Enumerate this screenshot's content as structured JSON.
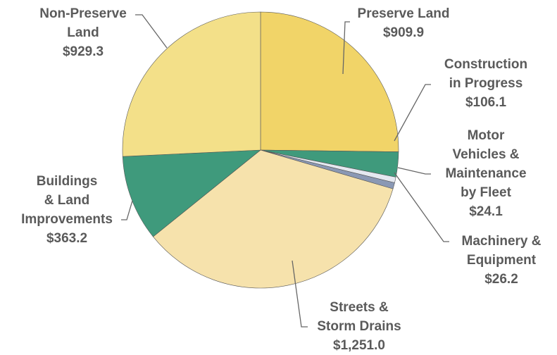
{
  "chart_data": {
    "type": "pie",
    "categories": [
      [
        "Preserve Land"
      ],
      [
        "Construction",
        "in Progress"
      ],
      [
        "Motor",
        "Vehicles &",
        "Maintenance",
        "by Fleet"
      ],
      [
        "Machinery &",
        "Equipment"
      ],
      [
        "Streets &",
        "Storm Drains"
      ],
      [
        "Buildings",
        "& Land",
        "Improvements"
      ],
      [
        "Non-Preserve",
        "Land"
      ]
    ],
    "values": [
      909.9,
      106.1,
      24.1,
      26.2,
      1251.0,
      363.2,
      929.3
    ],
    "value_labels": [
      "$909.9",
      "$106.1",
      "$24.1",
      "$26.2",
      "$1,251.0",
      "$363.2",
      "$929.3"
    ],
    "colors": [
      "#f1d468",
      "#3f9a7c",
      "#e4e8f0",
      "#8a98b4",
      "#f6e2ac",
      "#3f9a7c",
      "#f3e089"
    ]
  }
}
